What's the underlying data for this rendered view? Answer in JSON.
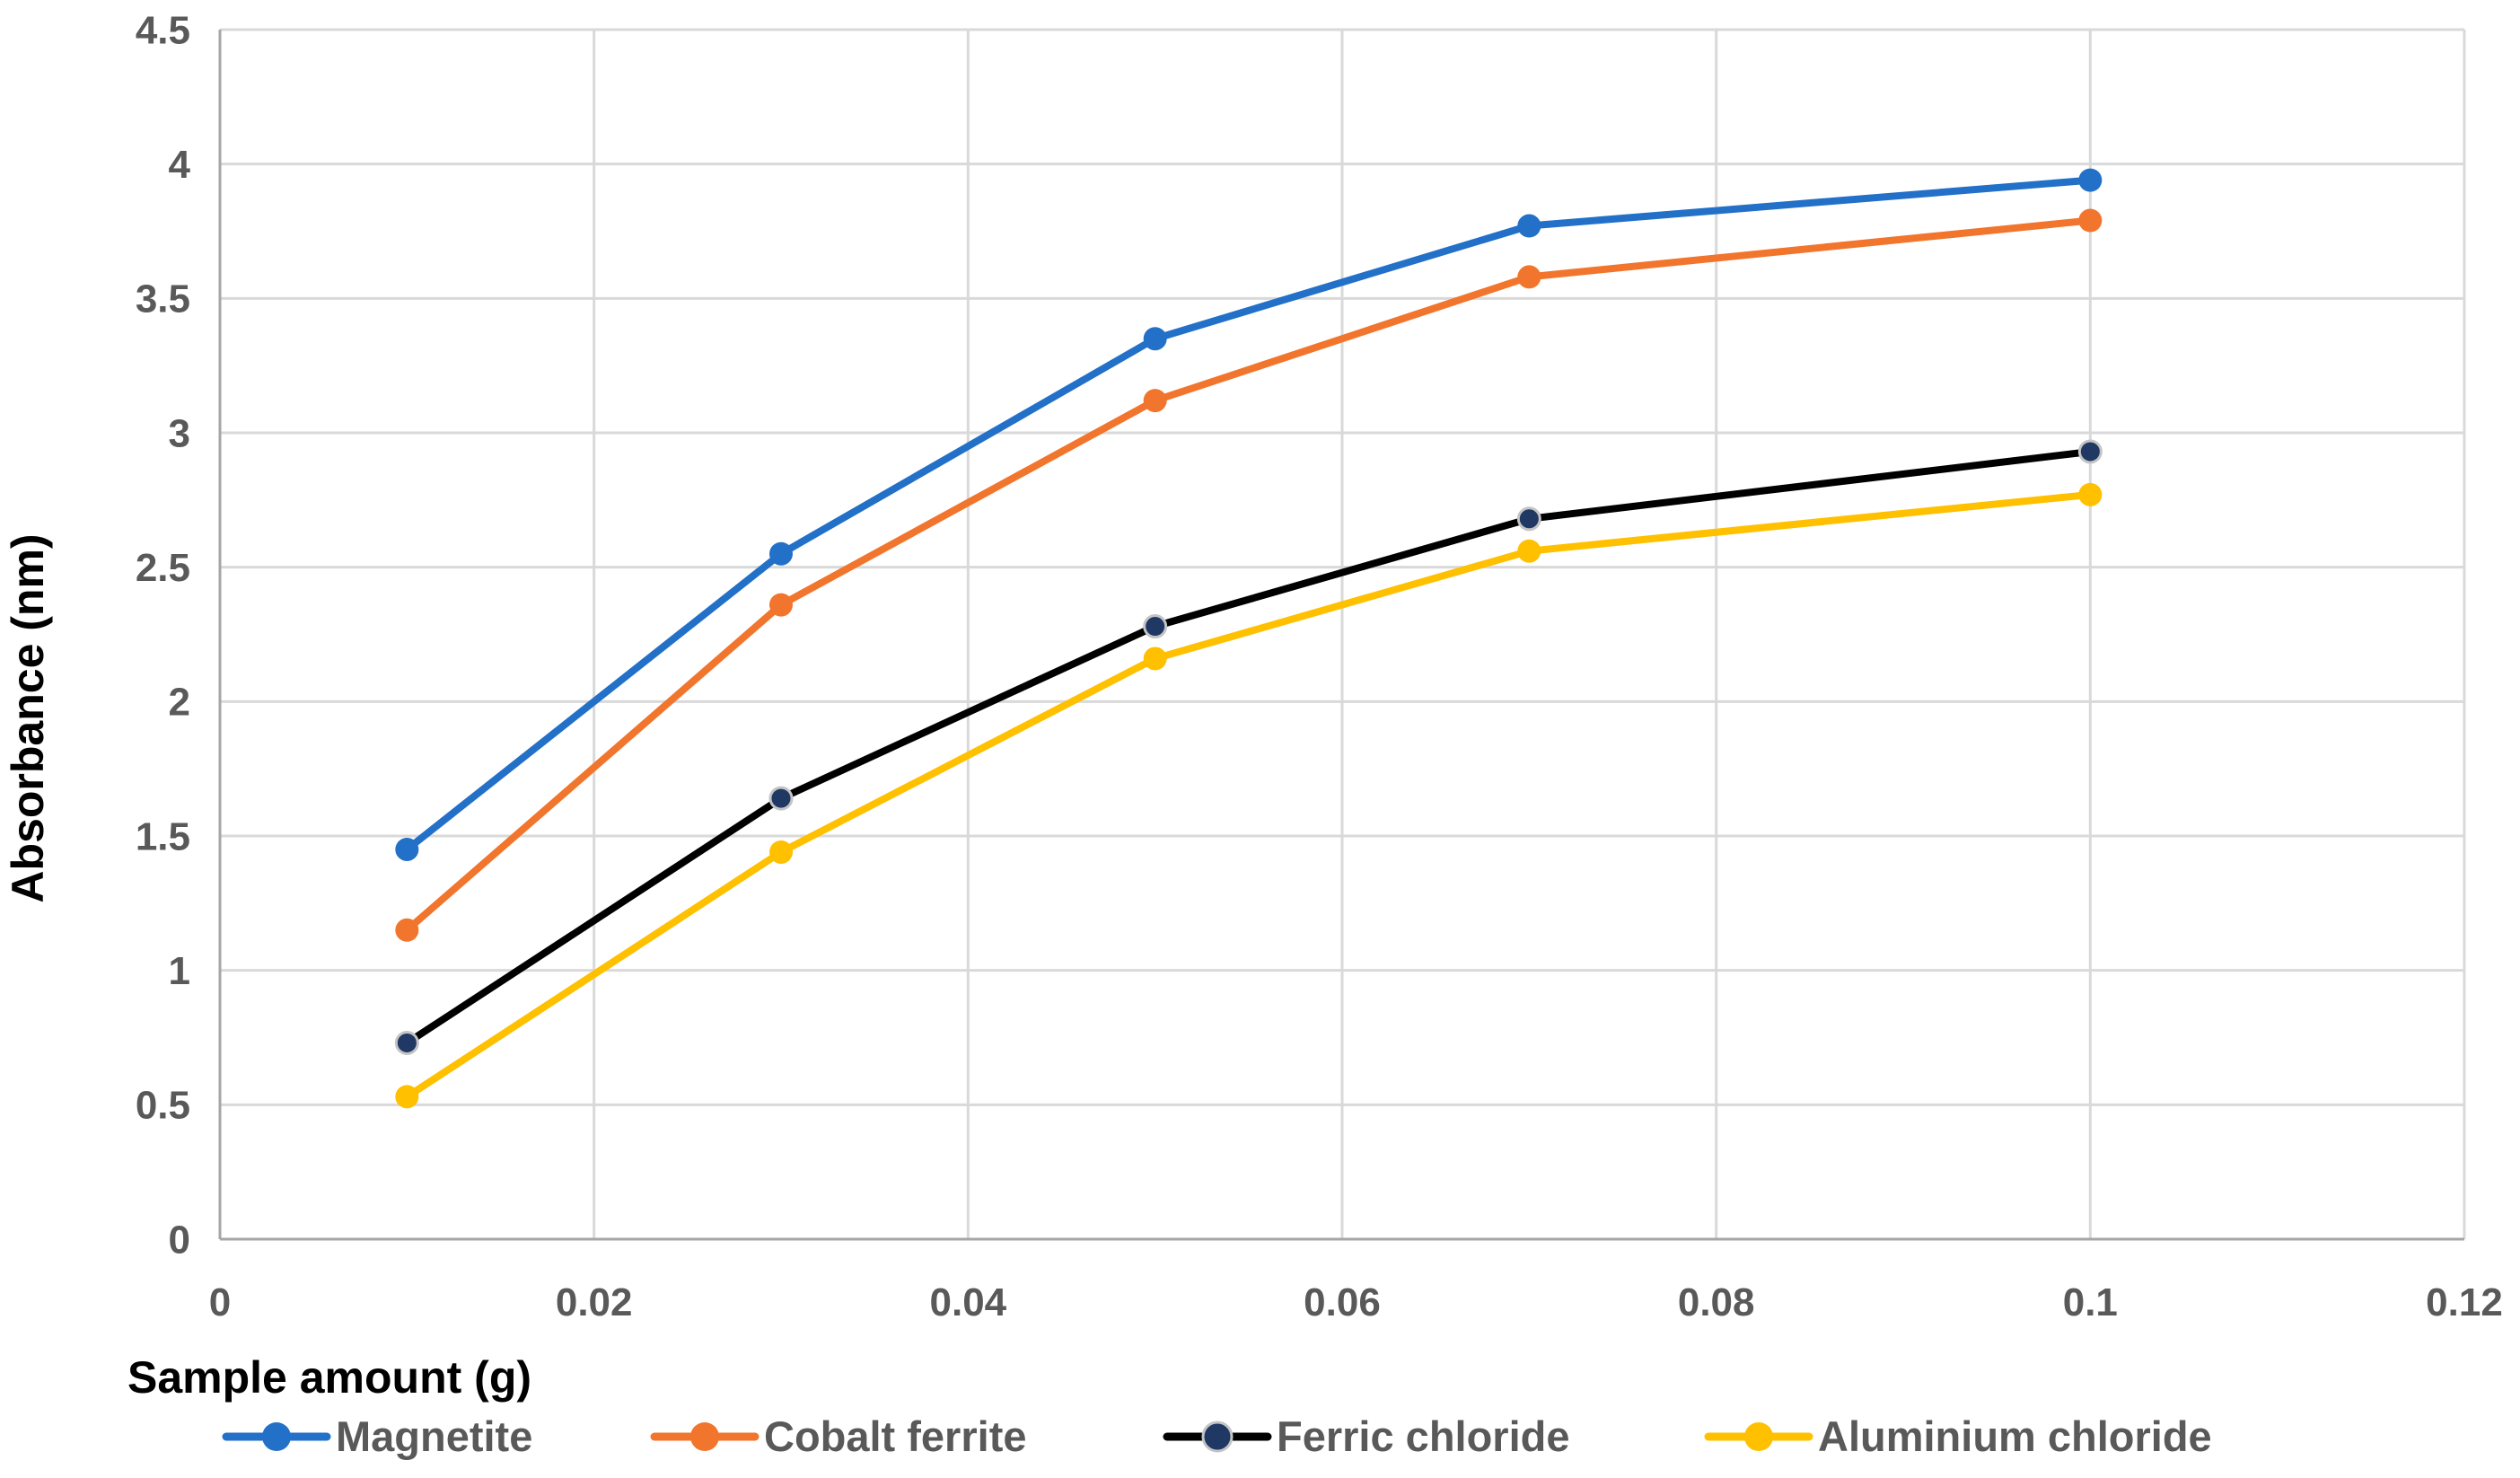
{
  "chart_data": {
    "type": "line",
    "title": "",
    "xlabel": "Sample amount (g)",
    "ylabel": "Absorbance (nm)",
    "x": [
      0.01,
      0.03,
      0.05,
      0.07,
      0.1
    ],
    "series": [
      {
        "name": "Magnetite",
        "color": "#2270C7",
        "marker_color": "#2270C7",
        "values": [
          1.45,
          2.55,
          3.35,
          3.77,
          3.94
        ]
      },
      {
        "name": "Cobalt ferrite",
        "color": "#F1752C",
        "marker_color": "#F1752C",
        "values": [
          1.15,
          2.36,
          3.12,
          3.58,
          3.79
        ]
      },
      {
        "name": "Ferric chloride",
        "color": "#000000",
        "marker_color": "#1F3864",
        "marker_outline": "#C4C4C4",
        "values": [
          0.73,
          1.64,
          2.28,
          2.68,
          2.93
        ]
      },
      {
        "name": "Aluminium chloride",
        "color": "#FFC000",
        "marker_color": "#FFC000",
        "values": [
          0.53,
          1.44,
          2.16,
          2.56,
          2.77
        ]
      }
    ],
    "xlim": [
      0,
      0.12
    ],
    "ylim": [
      0,
      4.5
    ],
    "x_ticks": [
      "0",
      "0.02",
      "0.04",
      "0.06",
      "0.08",
      "0.1",
      "0.12"
    ],
    "x_tick_values": [
      0,
      0.02,
      0.04,
      0.06,
      0.08,
      0.1,
      0.12
    ],
    "y_ticks": [
      "0",
      "0.5",
      "1",
      "1.5",
      "2",
      "2.5",
      "3",
      "3.5",
      "4",
      "4.5"
    ],
    "y_tick_values": [
      0,
      0.5,
      1,
      1.5,
      2,
      2.5,
      3,
      3.5,
      4,
      4.5
    ],
    "grid": true,
    "legend_position": "bottom"
  },
  "colors": {
    "background": "#FFFFFF",
    "gridline": "#D9D9D9",
    "axis_line": "#A6A6A6",
    "tick_text": "#595959",
    "title_text": "#000000",
    "legend_text": "#595959"
  }
}
